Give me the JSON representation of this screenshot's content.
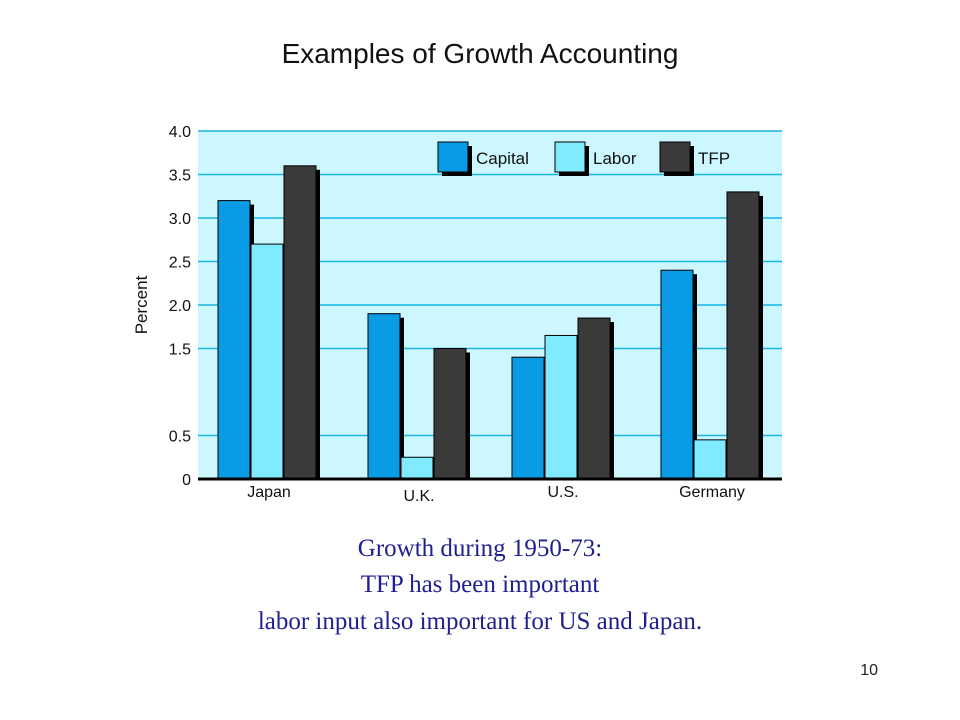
{
  "slide": {
    "title": "Examples of Growth Accounting",
    "caption_lines": [
      "Growth during 1950-73:",
      "TFP has been important",
      "labor input also important for US and Japan."
    ],
    "page_number": "10"
  },
  "chart_data": {
    "type": "bar",
    "categories": [
      "Japan",
      "U.K.",
      "U.S.",
      "Germany"
    ],
    "series": [
      {
        "name": "Capital",
        "values": [
          3.2,
          1.9,
          1.4,
          2.4
        ],
        "color": "#0a9be6"
      },
      {
        "name": "Labor",
        "values": [
          2.7,
          0.25,
          1.65,
          0.45
        ],
        "color": "#80eaff"
      },
      {
        "name": "TFP",
        "values": [
          3.6,
          1.5,
          1.85,
          3.3
        ],
        "color": "#3a3a3a"
      }
    ],
    "ylabel": "Percent",
    "yticks": [
      {
        "label": "0",
        "value": 0
      },
      {
        "label": "0.5",
        "value": 0.5
      },
      {
        "label": "1.5",
        "value": 1.5
      },
      {
        "label": "2.0",
        "value": 2.0
      },
      {
        "label": "2.5",
        "value": 2.5
      },
      {
        "label": "3.0",
        "value": 3.0
      },
      {
        "label": "3.5",
        "value": 3.5
      },
      {
        "label": "4.0",
        "value": 4.0
      }
    ],
    "ylim": [
      0,
      4.0
    ],
    "grid": true,
    "legend_position": "top-right",
    "plot_background": "#ccf7ff",
    "gridline_color": "#17b6e3"
  }
}
